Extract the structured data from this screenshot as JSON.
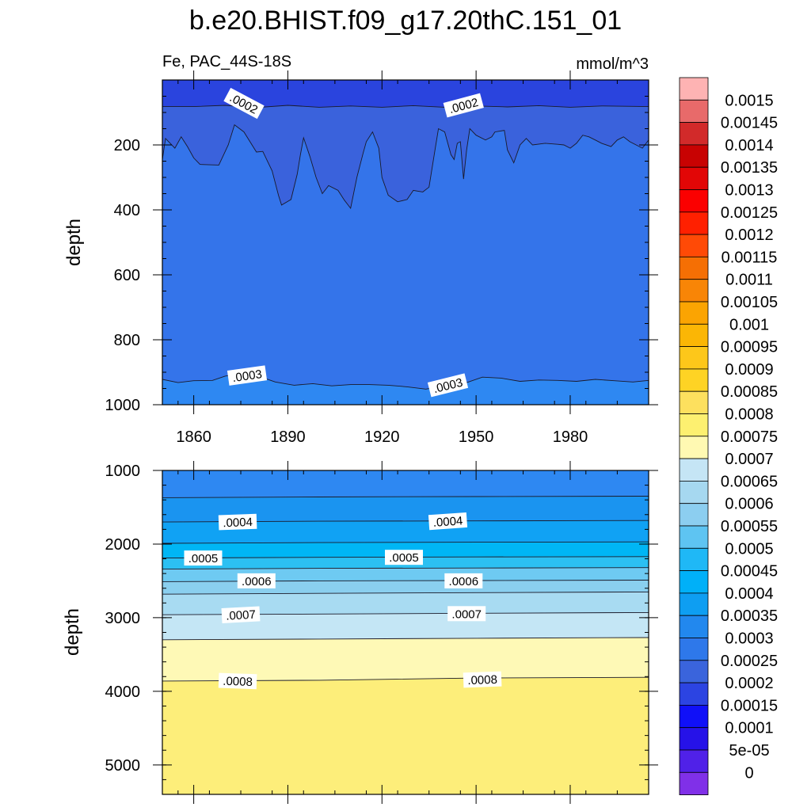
{
  "chart_data": {
    "type": "heatmap",
    "title": "b.e20.BHIST.f09_g17.20thC.151_01",
    "subtitle_left": "Fe, PAC_44S-18S",
    "units": "mmol/m^3",
    "x": {
      "range": [
        1850,
        2005
      ],
      "tick_values": [
        1860,
        1890,
        1920,
        1950,
        1980
      ],
      "tick_labels": [
        "1860",
        "1890",
        "1920",
        "1950",
        "1980"
      ]
    },
    "panels": [
      {
        "name": "upper",
        "ylabel": "depth",
        "ylim": [
          0,
          1000
        ],
        "y_tick_values": [
          200,
          400,
          600,
          800,
          1000
        ],
        "y_tick_labels": [
          "200",
          "400",
          "600",
          "800",
          "1000"
        ],
        "bands": [
          {
            "range": [
              0.00015,
              0.0002
            ],
            "color": "#2a44de"
          },
          {
            "range": [
              0.0002,
              0.00025
            ],
            "color": "#3a62dc"
          },
          {
            "range": [
              0.00025,
              0.0003
            ],
            "color": "#3474ea"
          },
          {
            "range": [
              0.0003,
              0.00035
            ],
            "color": "#2e88f2"
          }
        ],
        "contours": [
          {
            "level": 0.0002,
            "label": ".0002",
            "depths": [
              [
                1850,
                82
              ],
              [
                1860,
                82
              ],
              [
                1870,
                78
              ],
              [
                1880,
                85
              ],
              [
                1890,
                78
              ],
              [
                1900,
                84
              ],
              [
                1910,
                80
              ],
              [
                1920,
                84
              ],
              [
                1930,
                79
              ],
              [
                1940,
                84
              ],
              [
                1950,
                80
              ],
              [
                1960,
                83
              ],
              [
                1970,
                79
              ],
              [
                1980,
                84
              ],
              [
                1990,
                80
              ],
              [
                2005,
                82
              ]
            ]
          },
          {
            "level": 0.00025,
            "label": "",
            "depths": [
              [
                1850,
                245
              ],
              [
                1851,
                180
              ],
              [
                1854,
                210
              ],
              [
                1856,
                175
              ],
              [
                1858,
                205
              ],
              [
                1860,
                240
              ],
              [
                1862,
                260
              ],
              [
                1868,
                262
              ],
              [
                1871,
                200
              ],
              [
                1873,
                138
              ],
              [
                1876,
                160
              ],
              [
                1880,
                222
              ],
              [
                1882,
                220
              ],
              [
                1885,
                280
              ],
              [
                1887,
                355
              ],
              [
                1888,
                385
              ],
              [
                1891,
                368
              ],
              [
                1893,
                290
              ],
              [
                1894,
                230
              ],
              [
                1895,
                178
              ],
              [
                1897,
                235
              ],
              [
                1899,
                300
              ],
              [
                1901,
                350
              ],
              [
                1903,
                325
              ],
              [
                1906,
                340
              ],
              [
                1908,
                370
              ],
              [
                1910,
                395
              ],
              [
                1912,
                300
              ],
              [
                1914,
                225
              ],
              [
                1915,
                190
              ],
              [
                1917,
                160
              ],
              [
                1919,
                210
              ],
              [
                1920,
                300
              ],
              [
                1922,
                355
              ],
              [
                1925,
                375
              ],
              [
                1928,
                368
              ],
              [
                1930,
                340
              ],
              [
                1933,
                345
              ],
              [
                1935,
                330
              ],
              [
                1937,
                210
              ],
              [
                1938,
                150
              ],
              [
                1940,
                160
              ],
              [
                1942,
                230
              ],
              [
                1943,
                245
              ],
              [
                1944,
                195
              ],
              [
                1945,
                190
              ],
              [
                1946,
                305
              ],
              [
                1947,
                215
              ],
              [
                1948,
                150
              ],
              [
                1950,
                170
              ],
              [
                1953,
                185
              ],
              [
                1955,
                175
              ],
              [
                1956,
                160
              ],
              [
                1959,
                155
              ],
              [
                1960,
                215
              ],
              [
                1962,
                255
              ],
              [
                1964,
                200
              ],
              [
                1966,
                180
              ],
              [
                1968,
                200
              ],
              [
                1972,
                195
              ],
              [
                1976,
                198
              ],
              [
                1978,
                200
              ],
              [
                1980,
                210
              ],
              [
                1982,
                195
              ],
              [
                1984,
                170
              ],
              [
                1986,
                175
              ],
              [
                1988,
                185
              ],
              [
                1990,
                195
              ],
              [
                1993,
                205
              ],
              [
                1995,
                185
              ],
              [
                1997,
                175
              ],
              [
                1999,
                190
              ],
              [
                2001,
                200
              ],
              [
                2003,
                210
              ],
              [
                2005,
                185
              ]
            ]
          },
          {
            "level": 0.0003,
            "label": ".0003",
            "depths": [
              [
                1850,
                922
              ],
              [
                1855,
                932
              ],
              [
                1860,
                926
              ],
              [
                1866,
                925
              ],
              [
                1870,
                912
              ],
              [
                1875,
                905
              ],
              [
                1880,
                910
              ],
              [
                1886,
                930
              ],
              [
                1892,
                940
              ],
              [
                1898,
                935
              ],
              [
                1904,
                942
              ],
              [
                1910,
                938
              ],
              [
                1916,
                938
              ],
              [
                1922,
                940
              ],
              [
                1928,
                945
              ],
              [
                1934,
                952
              ],
              [
                1940,
                942
              ],
              [
                1946,
                935
              ],
              [
                1952,
                915
              ],
              [
                1958,
                918
              ],
              [
                1964,
                928
              ],
              [
                1970,
                924
              ],
              [
                1976,
                925
              ],
              [
                1982,
                928
              ],
              [
                1988,
                922
              ],
              [
                1994,
                926
              ],
              [
                2000,
                930
              ],
              [
                2005,
                925
              ]
            ]
          }
        ],
        "annotations": [
          {
            "text": ".0002",
            "x": 1876,
            "y": 72,
            "angle": 28
          },
          {
            "text": ".0002",
            "x": 1946,
            "y": 78,
            "angle": -15
          },
          {
            "text": ".0003",
            "x": 1877,
            "y": 910,
            "angle": -8
          },
          {
            "text": ".0003",
            "x": 1941,
            "y": 940,
            "angle": -14
          }
        ]
      },
      {
        "name": "lower",
        "ylabel": "depth",
        "ylim": [
          1000,
          5400
        ],
        "y_tick_values": [
          1000,
          2000,
          3000,
          4000,
          5000
        ],
        "y_tick_labels": [
          "1000",
          "2000",
          "3000",
          "4000",
          "5000"
        ],
        "bands": [
          {
            "range": [
              0.0003,
              0.00035
            ],
            "color": "#2e88f2"
          },
          {
            "range": [
              0.00035,
              0.0004
            ],
            "color": "#1a94f0"
          },
          {
            "range": [
              0.0004,
              0.00045
            ],
            "color": "#10a2f4"
          },
          {
            "range": [
              0.00045,
              0.0005
            ],
            "color": "#00b6f5"
          },
          {
            "range": [
              0.0005,
              0.00055
            ],
            "color": "#2cc0f2"
          },
          {
            "range": [
              0.00055,
              0.0006
            ],
            "color": "#6ecaf2"
          },
          {
            "range": [
              0.0006,
              0.00065
            ],
            "color": "#8acfef"
          },
          {
            "range": [
              0.00065,
              0.0007
            ],
            "color": "#a8dbf2"
          },
          {
            "range": [
              0.0007,
              0.00075
            ],
            "color": "#c4e6f5"
          },
          {
            "range": [
              0.00075,
              0.0008
            ],
            "color": "#fef9b6"
          },
          {
            "range": [
              0.0008,
              0.00085
            ],
            "color": "#fdee7a"
          }
        ],
        "contours": [
          {
            "level": 0.00035,
            "label": "",
            "depths": [
              [
                1850,
                1370
              ],
              [
                1900,
                1360
              ],
              [
                1950,
                1355
              ],
              [
                2005,
                1350
              ]
            ]
          },
          {
            "level": 0.0004,
            "label": ".0004",
            "depths": [
              [
                1850,
                1700
              ],
              [
                1900,
                1690
              ],
              [
                1950,
                1685
              ],
              [
                2005,
                1680
              ]
            ]
          },
          {
            "level": 0.00045,
            "label": "",
            "depths": [
              [
                1850,
                1990
              ],
              [
                1900,
                1980
              ],
              [
                1950,
                1975
              ],
              [
                2005,
                1970
              ]
            ]
          },
          {
            "level": 0.0005,
            "label": ".0005",
            "depths": [
              [
                1850,
                2190
              ],
              [
                1900,
                2180
              ],
              [
                1950,
                2175
              ],
              [
                2005,
                2170
              ]
            ]
          },
          {
            "level": 0.00055,
            "label": "",
            "depths": [
              [
                1850,
                2340
              ],
              [
                1900,
                2330
              ],
              [
                1950,
                2325
              ],
              [
                2005,
                2320
              ]
            ]
          },
          {
            "level": 0.0006,
            "label": ".0006",
            "depths": [
              [
                1850,
                2510
              ],
              [
                1900,
                2500
              ],
              [
                1950,
                2495
              ],
              [
                2005,
                2490
              ]
            ]
          },
          {
            "level": 0.00065,
            "label": "",
            "depths": [
              [
                1850,
                2680
              ],
              [
                1900,
                2670
              ],
              [
                1950,
                2660
              ],
              [
                2005,
                2650
              ]
            ]
          },
          {
            "level": 0.0007,
            "label": ".0007",
            "depths": [
              [
                1850,
                2960
              ],
              [
                1900,
                2950
              ],
              [
                1950,
                2940
              ],
              [
                2005,
                2930
              ]
            ]
          },
          {
            "level": 0.00075,
            "label": "",
            "depths": [
              [
                1850,
                3300
              ],
              [
                1900,
                3290
              ],
              [
                1950,
                3280
              ],
              [
                2005,
                3270
              ]
            ]
          },
          {
            "level": 0.0008,
            "label": ".0008",
            "depths": [
              [
                1850,
                3860
              ],
              [
                1900,
                3850
              ],
              [
                1950,
                3820
              ],
              [
                2005,
                3810
              ]
            ]
          }
        ],
        "annotations": [
          {
            "text": ".0004",
            "x": 1874,
            "y": 1700,
            "angle": -2
          },
          {
            "text": ".0004",
            "x": 1941,
            "y": 1690,
            "angle": -4
          },
          {
            "text": ".0005",
            "x": 1863,
            "y": 2190,
            "angle": 0
          },
          {
            "text": ".0005",
            "x": 1927,
            "y": 2180,
            "angle": 0
          },
          {
            "text": ".0006",
            "x": 1880,
            "y": 2500,
            "angle": 0
          },
          {
            "text": ".0006",
            "x": 1946,
            "y": 2500,
            "angle": 0
          },
          {
            "text": ".0007",
            "x": 1875,
            "y": 2960,
            "angle": -3
          },
          {
            "text": ".0007",
            "x": 1947,
            "y": 2945,
            "angle": 0
          },
          {
            "text": ".0008",
            "x": 1874,
            "y": 3860,
            "angle": 2
          },
          {
            "text": ".0008",
            "x": 1952,
            "y": 3840,
            "angle": -2
          }
        ]
      }
    ],
    "colorbar": {
      "labels": [
        "0.0015",
        "0.00145",
        "0.0014",
        "0.00135",
        "0.0013",
        "0.00125",
        "0.0012",
        "0.00115",
        "0.0011",
        "0.00105",
        "0.001",
        "0.00095",
        "0.0009",
        "0.00085",
        "0.0008",
        "0.00075",
        "0.0007",
        "0.00065",
        "0.0006",
        "0.00055",
        "0.0005",
        "0.00045",
        "0.0004",
        "0.00035",
        "0.0003",
        "0.00025",
        "0.0002",
        "0.00015",
        "0.0001",
        "5e-05",
        "0"
      ],
      "colors": [
        "#feb3b3",
        "#e86a6a",
        "#d22a2a",
        "#c80202",
        "#e20606",
        "#fb0000",
        "#ff2000",
        "#ff4a06",
        "#f56f04",
        "#f88506",
        "#fba402",
        "#fbb605",
        "#fdc71a",
        "#fed324",
        "#fde05e",
        "#fdf070",
        "#fff9b2",
        "#c5e5f5",
        "#a6d8f0",
        "#8ccef0",
        "#5ec4f2",
        "#1fb8f6",
        "#00b0f8",
        "#0e9ef2",
        "#2288ee",
        "#2e78ea",
        "#3a64dc",
        "#2c44e2",
        "#1010f8",
        "#2612e8",
        "#5021e8",
        "#8030e8"
      ]
    }
  }
}
